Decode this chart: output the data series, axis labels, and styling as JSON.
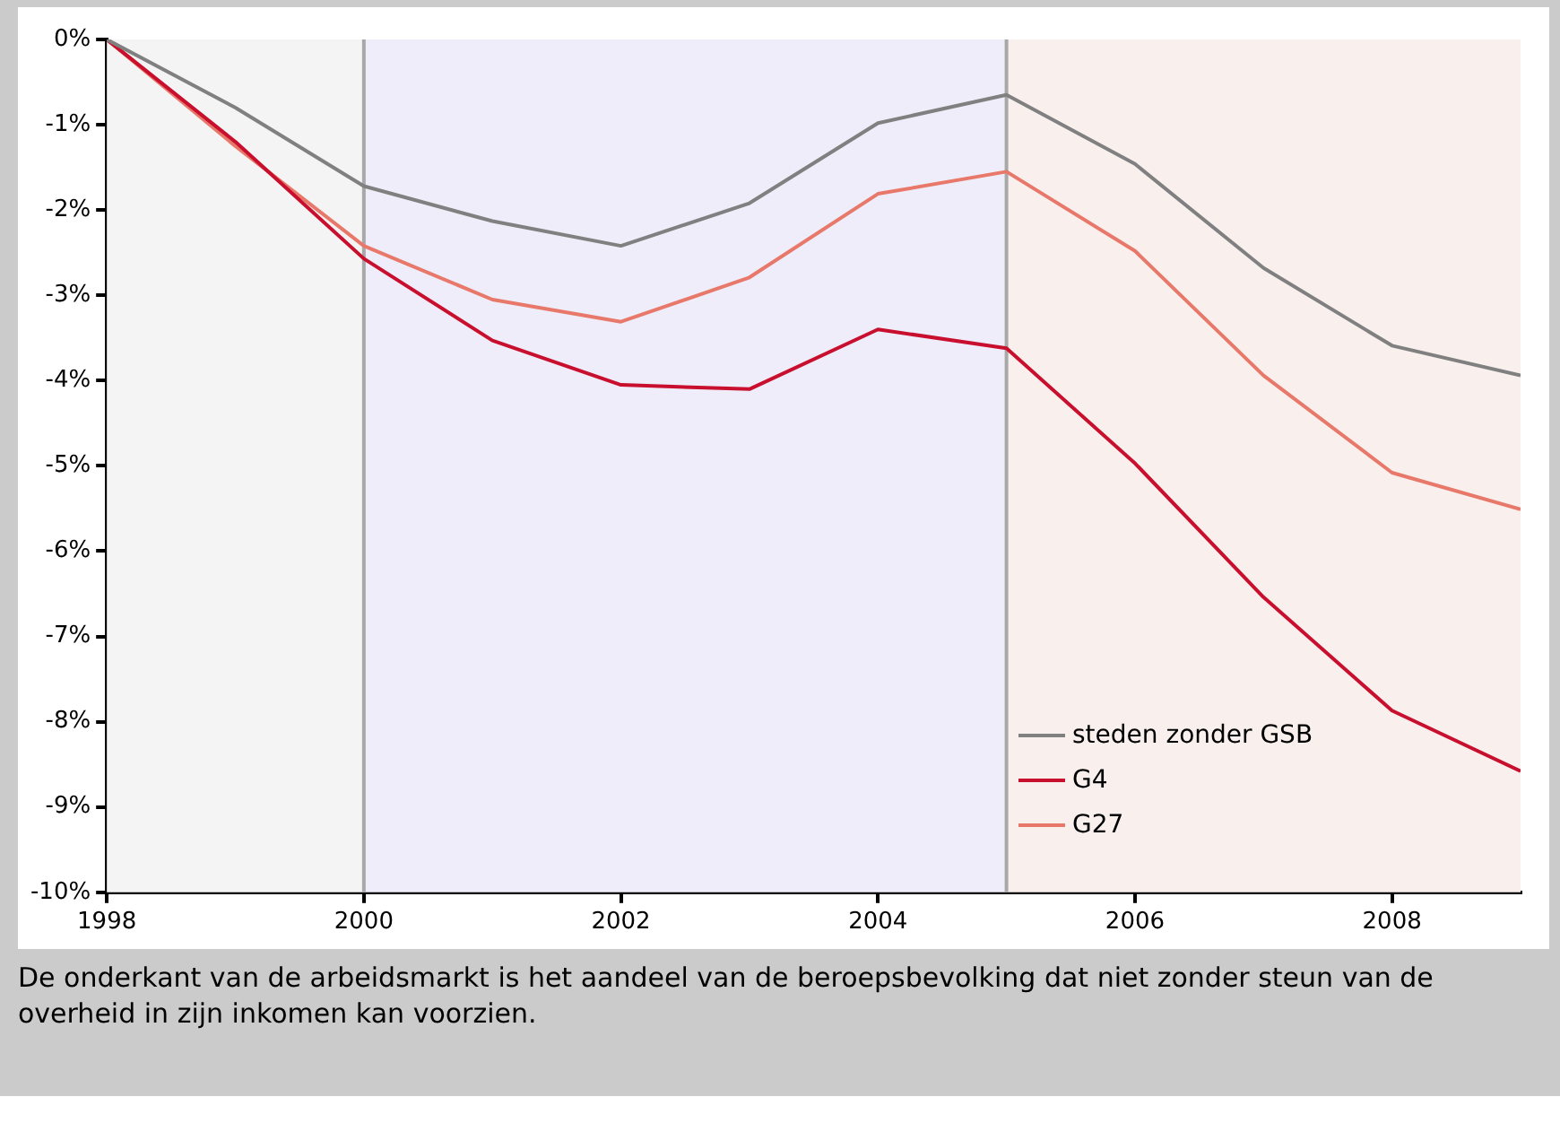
{
  "chart_data": {
    "type": "line",
    "x": [
      1998,
      1999,
      2000,
      2001,
      2002,
      2003,
      2004,
      2005,
      2006,
      2007,
      2008,
      2009
    ],
    "series": [
      {
        "name": "steden zonder GSB",
        "color": "#808080",
        "values": [
          0,
          -0.8,
          -1.72,
          -2.13,
          -2.42,
          -1.92,
          -0.98,
          -0.65,
          -1.46,
          -2.68,
          -3.59,
          -3.94
        ]
      },
      {
        "name": "G4",
        "color": "#c8102e",
        "values": [
          0,
          -1.2,
          -2.57,
          -3.53,
          -4.05,
          -4.1,
          -3.4,
          -3.62,
          -4.97,
          -6.54,
          -7.87,
          -8.58
        ]
      },
      {
        "name": "G27",
        "color": "#e8786a",
        "values": [
          0,
          -1.25,
          -2.42,
          -3.05,
          -3.31,
          -2.79,
          -1.81,
          -1.55,
          -2.48,
          -3.94,
          -5.08,
          -5.51
        ]
      }
    ],
    "xlim": [
      1998,
      2009
    ],
    "xticks": [
      1998,
      2000,
      2002,
      2004,
      2006,
      2008
    ],
    "ylim": [
      -10,
      0
    ],
    "yticks": [
      {
        "value": -10,
        "label": "-10%"
      },
      {
        "value": -9,
        "label": "-9%"
      },
      {
        "value": -8,
        "label": "-8%"
      },
      {
        "value": -7,
        "label": "-7%"
      },
      {
        "value": -6,
        "label": "-6%"
      },
      {
        "value": -5,
        "label": "-5%"
      },
      {
        "value": -4,
        "label": "-4%"
      },
      {
        "value": -3,
        "label": "-3%"
      },
      {
        "value": -2,
        "label": "-2%"
      },
      {
        "value": -1,
        "label": "-1%"
      },
      {
        "value": 0,
        "label": "0%"
      }
    ],
    "bands": [
      {
        "axis": "x",
        "from": 1998,
        "to": 2000,
        "color": "#f4f4f4"
      },
      {
        "axis": "x",
        "from": 2000,
        "to": 2005,
        "color": "#efedfa"
      },
      {
        "axis": "x",
        "from": 2005,
        "to": 2009,
        "color": "#f9f0ee"
      }
    ],
    "ref_lines": [
      {
        "axis": "x",
        "value": 2000,
        "color": "#a8a8a8"
      },
      {
        "axis": "x",
        "value": 2005,
        "color": "#a8a8a8"
      }
    ],
    "grid": false,
    "legend": "bottom right",
    "marker": "none",
    "line_style": "solid",
    "annotations": [
      "De onderkant van de arbeidsmarkt is het aandeel van de beroepsbevolking dat niet zonder steun van de overheid in zijn inkomen kan voorzien."
    ]
  }
}
